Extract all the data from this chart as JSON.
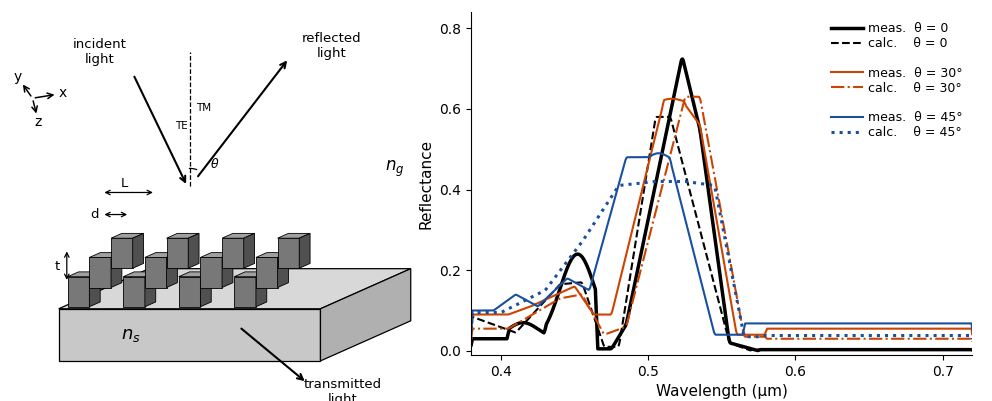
{
  "chart_title": "",
  "xlabel": "Wavelength (μm)",
  "ylabel": "Reflectance",
  "xlim": [
    0.38,
    0.72
  ],
  "ylim": [
    -0.01,
    0.84
  ],
  "xticks": [
    0.4,
    0.5,
    0.6,
    0.7
  ],
  "yticks": [
    0.0,
    0.2,
    0.4,
    0.6,
    0.8
  ],
  "legend_entries": [
    {
      "label": "meas.  θ = 0",
      "color": "#000000",
      "linestyle": "solid",
      "linewidth": 2.5
    },
    {
      "label": "calc.    θ = 0",
      "color": "#000000",
      "linestyle": "dashed",
      "linewidth": 1.5
    },
    {
      "label": "meas.  θ = 30°",
      "color": "#cc4400",
      "linestyle": "solid",
      "linewidth": 1.5
    },
    {
      "label": "calc.    θ = 30°",
      "color": "#cc4400",
      "linestyle": "dashdot",
      "linewidth": 1.5
    },
    {
      "label": "meas.  θ = 45°",
      "color": "#1a4fa0",
      "linestyle": "solid",
      "linewidth": 1.5
    },
    {
      "label": "calc.    θ = 45°",
      "color": "#1a4fa0",
      "linestyle": "dotted",
      "linewidth": 2.2
    }
  ],
  "background_color": "#ffffff",
  "axis_fontsize": 11,
  "tick_fontsize": 10,
  "legend_fontsize": 9
}
